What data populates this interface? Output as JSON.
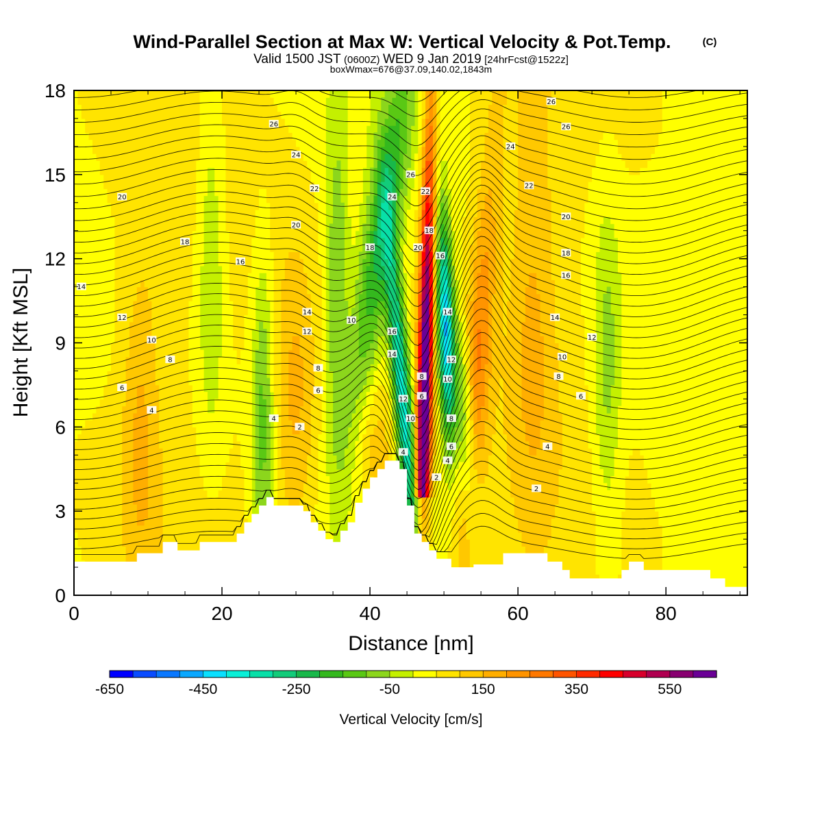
{
  "chart_data": {
    "type": "heatmap",
    "title": "Wind-Parallel Section at Max W: Vertical Velocity & Pot.Temp.",
    "title_mark": "(C)",
    "subtitle": {
      "part1": "Valid 1500 JST",
      "part2": "(0600Z)",
      "part3": "WED 9 Jan 2019",
      "part4": "[24hrFcst@1522z]"
    },
    "subtitle2": "boxWmax=676@37.09,140.02,1843m",
    "xlabel": "Distance [nm]",
    "ylabel": "Height [Kft MSL]",
    "xlim": [
      0,
      91
    ],
    "ylim": [
      0,
      18
    ],
    "xticks": [
      "0",
      "20",
      "40",
      "60",
      "80"
    ],
    "yticks": [
      "0",
      "3",
      "6",
      "9",
      "12",
      "15",
      "18"
    ],
    "colorbar": {
      "title": "Vertical Velocity [cm/s]",
      "labels": [
        "-650",
        "-450",
        "-250",
        "-50",
        "150",
        "350",
        "550"
      ],
      "colors": [
        "#0000ff",
        "#0a4cff",
        "#0a78ff",
        "#0aa8ff",
        "#0ae0ff",
        "#0af0d8",
        "#08e0a8",
        "#12cc7a",
        "#18b84a",
        "#34b81e",
        "#5ac814",
        "#8cd61c",
        "#c4f000",
        "#ffff00",
        "#ffe400",
        "#ffc800",
        "#ffae00",
        "#ff9400",
        "#ff7800",
        "#ff5400",
        "#ff2a00",
        "#ff0000",
        "#d8002c",
        "#b00050",
        "#880070",
        "#6a0096"
      ]
    },
    "terrain_kft": [
      [
        0,
        1.2
      ],
      [
        8.5,
        1.2
      ],
      [
        8.5,
        1.5
      ],
      [
        12,
        1.5
      ],
      [
        12,
        1.9
      ],
      [
        14,
        1.9
      ],
      [
        14,
        1.6
      ],
      [
        17,
        1.6
      ],
      [
        17,
        1.9
      ],
      [
        22,
        1.9
      ],
      [
        22,
        2.2
      ],
      [
        23,
        2.2
      ],
      [
        23,
        2.6
      ],
      [
        24,
        2.6
      ],
      [
        24,
        2.9
      ],
      [
        25,
        2.9
      ],
      [
        25,
        3.2
      ],
      [
        26,
        3.2
      ],
      [
        26,
        3.5
      ],
      [
        27,
        3.5
      ],
      [
        27,
        3.2
      ],
      [
        31,
        3.2
      ],
      [
        31,
        3.0
      ],
      [
        32,
        3.0
      ],
      [
        32,
        2.6
      ],
      [
        33,
        2.6
      ],
      [
        33,
        2.3
      ],
      [
        34,
        2.3
      ],
      [
        34,
        2.0
      ],
      [
        35,
        2.0
      ],
      [
        35,
        1.9
      ],
      [
        36,
        1.9
      ],
      [
        36,
        2.3
      ],
      [
        37,
        2.3
      ],
      [
        37,
        2.6
      ],
      [
        38,
        2.6
      ],
      [
        38,
        3.3
      ],
      [
        39,
        3.3
      ],
      [
        39,
        3.8
      ],
      [
        40,
        3.8
      ],
      [
        40,
        4.2
      ],
      [
        41,
        4.2
      ],
      [
        41,
        4.5
      ],
      [
        42,
        4.5
      ],
      [
        42,
        4.8
      ],
      [
        44,
        4.8
      ],
      [
        44,
        4.5
      ],
      [
        45,
        4.5
      ],
      [
        45,
        3.2
      ],
      [
        46,
        3.2
      ],
      [
        46,
        2.2
      ],
      [
        47,
        2.2
      ],
      [
        47,
        1.9
      ],
      [
        48,
        1.9
      ],
      [
        48,
        1.6
      ],
      [
        49,
        1.6
      ],
      [
        49,
        1.3
      ],
      [
        51,
        1.3
      ],
      [
        51,
        1.0
      ],
      [
        54,
        1.0
      ],
      [
        54,
        1.1
      ],
      [
        58,
        1.1
      ],
      [
        58,
        1.5
      ],
      [
        64,
        1.5
      ],
      [
        64,
        1.2
      ],
      [
        66,
        1.2
      ],
      [
        66,
        0.9
      ],
      [
        67,
        0.9
      ],
      [
        67,
        0.6
      ],
      [
        74,
        0.6
      ],
      [
        74,
        0.9
      ],
      [
        75,
        0.9
      ],
      [
        75,
        1.2
      ],
      [
        77,
        1.2
      ],
      [
        77,
        0.9
      ],
      [
        86,
        0.9
      ],
      [
        86,
        0.6
      ],
      [
        88,
        0.6
      ],
      [
        88,
        0.3
      ],
      [
        91,
        0.3
      ]
    ],
    "wave_updraft_cms": [
      {
        "x": 47.2,
        "z": 5.5,
        "w": 676
      },
      {
        "x": 54.5,
        "z": 9.0,
        "w": 180
      },
      {
        "x": 29.0,
        "z": 7.0,
        "w": 120
      },
      {
        "x": 41.0,
        "z": 5.5,
        "w": 100
      }
    ],
    "wave_downdraft_cms": [
      {
        "x": 45.0,
        "z": 5.5,
        "w": -420
      },
      {
        "x": 50.5,
        "z": 9.0,
        "w": -500
      },
      {
        "x": 41.5,
        "z": 13.0,
        "w": -250
      },
      {
        "x": 35.0,
        "z": 10.0,
        "w": -180
      },
      {
        "x": 26.0,
        "z": 5.0,
        "w": -150
      }
    ],
    "theta_levels_c": [
      2,
      4,
      6,
      8,
      10,
      12,
      14,
      16,
      18,
      20,
      22,
      24,
      26
    ],
    "theta_contour_labels": [
      {
        "text": "26",
        "x": 27.0,
        "z": 16.8
      },
      {
        "text": "24",
        "x": 30.0,
        "z": 15.7
      },
      {
        "text": "22",
        "x": 32.5,
        "z": 14.5
      },
      {
        "text": "20",
        "x": 6.5,
        "z": 14.2
      },
      {
        "text": "20",
        "x": 30.0,
        "z": 13.2
      },
      {
        "text": "18",
        "x": 15.0,
        "z": 12.6
      },
      {
        "text": "16",
        "x": 22.5,
        "z": 11.9
      },
      {
        "text": "14",
        "x": 1.0,
        "z": 11.0
      },
      {
        "text": "14",
        "x": 31.5,
        "z": 10.1
      },
      {
        "text": "12",
        "x": 6.5,
        "z": 9.9
      },
      {
        "text": "12",
        "x": 31.5,
        "z": 9.4
      },
      {
        "text": "10",
        "x": 10.5,
        "z": 9.1
      },
      {
        "text": "10",
        "x": 37.5,
        "z": 9.8
      },
      {
        "text": "8",
        "x": 13.0,
        "z": 8.4
      },
      {
        "text": "8",
        "x": 33.0,
        "z": 8.1
      },
      {
        "text": "6",
        "x": 6.5,
        "z": 7.4
      },
      {
        "text": "6",
        "x": 33.0,
        "z": 7.3
      },
      {
        "text": "4",
        "x": 10.5,
        "z": 6.6
      },
      {
        "text": "4",
        "x": 27.0,
        "z": 6.3
      },
      {
        "text": "2",
        "x": 30.5,
        "z": 6.0
      },
      {
        "text": "26",
        "x": 45.5,
        "z": 15.0
      },
      {
        "text": "24",
        "x": 43.0,
        "z": 14.2
      },
      {
        "text": "22",
        "x": 47.5,
        "z": 14.4
      },
      {
        "text": "18",
        "x": 40.0,
        "z": 12.4
      },
      {
        "text": "20",
        "x": 46.5,
        "z": 12.4
      },
      {
        "text": "18",
        "x": 48.0,
        "z": 13.0
      },
      {
        "text": "16",
        "x": 43.0,
        "z": 9.4
      },
      {
        "text": "14",
        "x": 43.0,
        "z": 8.6
      },
      {
        "text": "12",
        "x": 44.5,
        "z": 7.0
      },
      {
        "text": "10",
        "x": 45.5,
        "z": 6.3
      },
      {
        "text": "8",
        "x": 47.0,
        "z": 7.8
      },
      {
        "text": "6",
        "x": 47.0,
        "z": 7.1
      },
      {
        "text": "4",
        "x": 44.5,
        "z": 5.1
      },
      {
        "text": "16",
        "x": 49.5,
        "z": 12.1
      },
      {
        "text": "14",
        "x": 50.5,
        "z": 10.1
      },
      {
        "text": "12",
        "x": 51.0,
        "z": 8.4
      },
      {
        "text": "10",
        "x": 50.5,
        "z": 7.7
      },
      {
        "text": "8",
        "x": 51.0,
        "z": 6.3
      },
      {
        "text": "6",
        "x": 51.0,
        "z": 5.3
      },
      {
        "text": "4",
        "x": 50.5,
        "z": 4.8
      },
      {
        "text": "2",
        "x": 49.0,
        "z": 4.2
      },
      {
        "text": "26",
        "x": 64.5,
        "z": 17.6
      },
      {
        "text": "26",
        "x": 66.5,
        "z": 16.7
      },
      {
        "text": "24",
        "x": 59.0,
        "z": 16.0
      },
      {
        "text": "22",
        "x": 61.5,
        "z": 14.6
      },
      {
        "text": "20",
        "x": 66.5,
        "z": 13.5
      },
      {
        "text": "18",
        "x": 66.5,
        "z": 12.2
      },
      {
        "text": "16",
        "x": 66.5,
        "z": 11.4
      },
      {
        "text": "14",
        "x": 65.0,
        "z": 9.9
      },
      {
        "text": "12",
        "x": 70.0,
        "z": 9.2
      },
      {
        "text": "10",
        "x": 66.0,
        "z": 8.5
      },
      {
        "text": "8",
        "x": 65.5,
        "z": 7.8
      },
      {
        "text": "6",
        "x": 68.5,
        "z": 7.1
      },
      {
        "text": "4",
        "x": 64.0,
        "z": 5.3
      },
      {
        "text": "2",
        "x": 62.5,
        "z": 3.8
      }
    ]
  }
}
